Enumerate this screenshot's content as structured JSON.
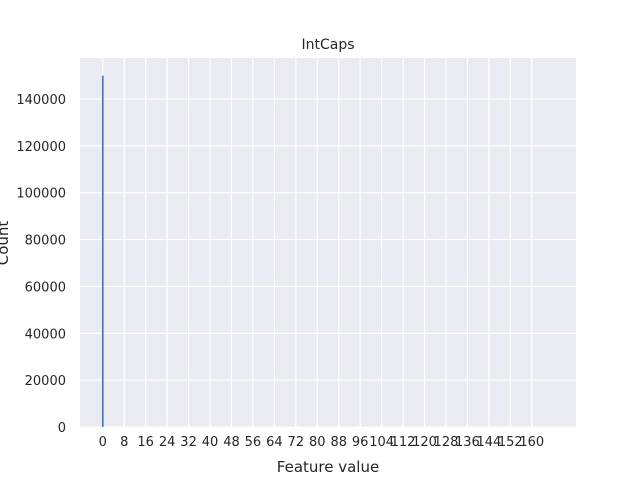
{
  "chart_data": {
    "type": "bar",
    "title": "IntCaps",
    "xlabel": "Feature value",
    "ylabel": "Count",
    "xlim": [
      -8.5,
      176.5
    ],
    "ylim": [
      0,
      157500
    ],
    "xticks": [
      0,
      8,
      16,
      24,
      32,
      40,
      48,
      56,
      64,
      72,
      80,
      88,
      96,
      104,
      112,
      120,
      128,
      136,
      144,
      152,
      160
    ],
    "yticks": [
      0,
      20000,
      40000,
      60000,
      80000,
      100000,
      120000,
      140000
    ],
    "grid": true,
    "background": "#eaeaf2",
    "grid_color": "#ffffff",
    "bar_color": "#4c72b0",
    "bins": [
      {
        "x": 0,
        "count": 150000
      }
    ]
  }
}
